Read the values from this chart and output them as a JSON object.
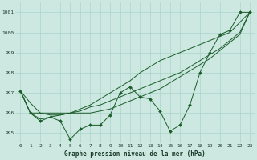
{
  "title": "Graphe pression niveau de la mer (hPa)",
  "background_color": "#cce8e0",
  "grid_color": "#aad4cc",
  "line_color": "#1a5c2a",
  "ylim": [
    994.5,
    1001.5
  ],
  "yticks": [
    995,
    996,
    997,
    998,
    999,
    1000,
    1001
  ],
  "x_labels": [
    "0",
    "1",
    "2",
    "3",
    "4",
    "5",
    "6",
    "7",
    "8",
    "9",
    "10",
    "11",
    "12",
    "13",
    "14",
    "15",
    "16",
    "17",
    "18",
    "19",
    "20",
    "21",
    "22",
    "23"
  ],
  "zigzag": [
    997.1,
    996.0,
    995.6,
    995.8,
    995.6,
    994.7,
    995.2,
    995.4,
    995.4,
    995.9,
    997.0,
    997.3,
    996.8,
    996.7,
    996.1,
    995.1,
    995.4,
    996.4,
    998.0,
    999.0,
    999.9,
    1000.1,
    1001.0,
    1001.0
  ],
  "trend1": [
    997.1,
    996.0,
    996.0,
    996.0,
    996.0,
    996.0,
    996.0,
    996.0,
    996.1,
    996.2,
    996.4,
    996.6,
    996.8,
    997.0,
    997.2,
    997.5,
    997.8,
    998.1,
    998.4,
    998.7,
    999.1,
    999.5,
    999.9,
    1001.0
  ],
  "trend2": [
    997.1,
    996.0,
    995.7,
    995.8,
    995.9,
    996.0,
    996.1,
    996.3,
    996.4,
    996.6,
    996.8,
    997.0,
    997.2,
    997.4,
    997.6,
    997.8,
    998.0,
    998.3,
    998.6,
    998.9,
    999.2,
    999.6,
    1000.0,
    1001.0
  ],
  "trend3": [
    997.1,
    996.5,
    996.0,
    995.9,
    995.9,
    996.0,
    996.2,
    996.4,
    996.7,
    997.0,
    997.3,
    997.6,
    998.0,
    998.3,
    998.6,
    998.8,
    999.0,
    999.2,
    999.4,
    999.6,
    999.8,
    1000.0,
    1000.5,
    1001.0
  ]
}
